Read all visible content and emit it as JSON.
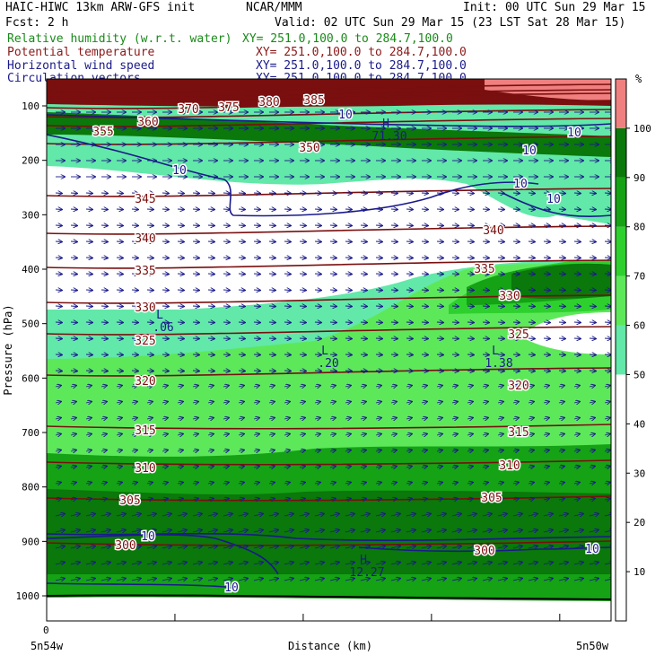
{
  "header": {
    "line1_left": "HAIC-HIWC 13km ARW-GFS init",
    "line1_mid": "NCAR/MMM",
    "line1_right": "Init: 00 UTC Sun 29 Mar 15",
    "line2_left": "Fcst:   2 h",
    "line2_right": "Valid: 02 UTC Sun 29 Mar 15 (23 LST Sat 28 Mar 15)",
    "fields": [
      {
        "name": "Relative humidity (w.r.t. water)",
        "xy": "XY= 251.0,100.0 to 284.7,100.0",
        "color": "#1a8a1a"
      },
      {
        "name": "Potential temperature",
        "xy": "XY= 251.0,100.0 to 284.7,100.0",
        "color": "#8b1a1a"
      },
      {
        "name": "Horizontal wind speed",
        "xy": "XY= 251.0,100.0 to 284.7,100.0",
        "color": "#1a1a8b"
      },
      {
        "name": "Circulation vectors",
        "xy": "XY= 251.0,100.0 to 284.7,100.0",
        "color": "#1a1a8b"
      }
    ]
  },
  "chart_data": {
    "type": "heatmap",
    "ylabel": "Pressure (hPa)",
    "xlabel": "Distance (km)",
    "y_ticks": [
      100,
      200,
      300,
      400,
      500,
      600,
      700,
      800,
      900,
      1000
    ],
    "x_labels": {
      "origin": "0",
      "left": "5n54w",
      "right": "5n50w"
    },
    "colorbar": {
      "unit": "%",
      "ticks": [
        10,
        20,
        30,
        40,
        50,
        60,
        70,
        80,
        90,
        100
      ],
      "levels": [
        {
          "min": 50,
          "max": 60,
          "color": "#62e8a8"
        },
        {
          "min": 60,
          "max": 70,
          "color": "#5de85a"
        },
        {
          "min": 70,
          "max": 80,
          "color": "#2ed02e"
        },
        {
          "min": 80,
          "max": 90,
          "color": "#15a215"
        },
        {
          "min": 90,
          "max": 100,
          "color": "#0a780a"
        },
        {
          "min": 100,
          "max": 110,
          "color": "#f08080"
        }
      ]
    },
    "theta_labels": [
      "385",
      "380",
      "375",
      "370",
      "360",
      "355",
      "350",
      "345",
      "340",
      "335",
      "330",
      "325",
      "320",
      "315",
      "310",
      "305",
      "300"
    ],
    "wind_labels": [
      "10",
      "10",
      "10",
      "10",
      "10",
      "10",
      "10",
      "10",
      "10"
    ],
    "annotations": [
      {
        "text": "L",
        "sub": ".06"
      },
      {
        "text": "L",
        "sub": ".20"
      },
      {
        "text": "L",
        "sub": "1.38"
      },
      {
        "text": "H",
        "sub": "12.27"
      },
      {
        "text": "H",
        "sub": "71.30"
      }
    ]
  }
}
